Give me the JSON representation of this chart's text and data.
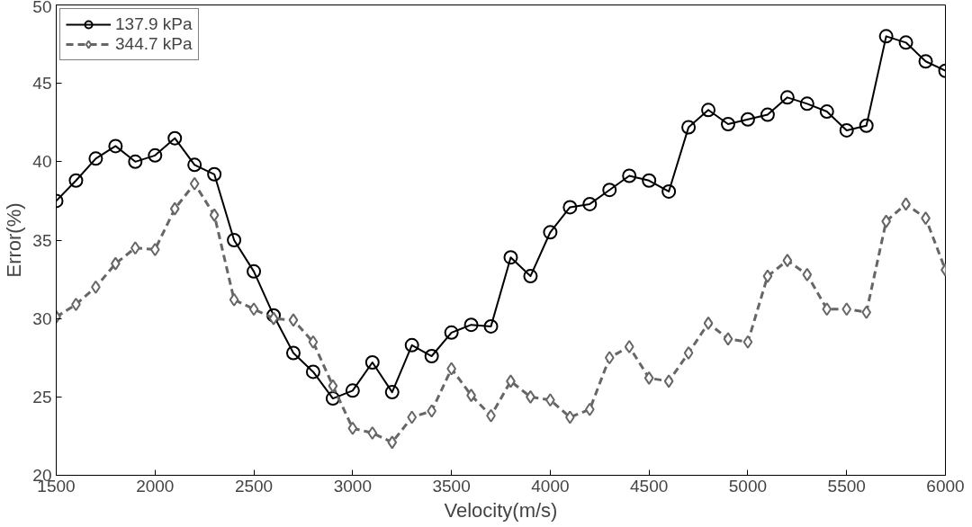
{
  "chart_data": {
    "type": "line",
    "xlabel": "Velocity(m/s)",
    "ylabel": "Error(%)",
    "x": [
      1500,
      1600,
      1700,
      1800,
      1900,
      2000,
      2100,
      2200,
      2300,
      2400,
      2500,
      2600,
      2700,
      2800,
      2900,
      3000,
      3100,
      3200,
      3300,
      3400,
      3500,
      3600,
      3700,
      3800,
      3900,
      4000,
      4100,
      4200,
      4300,
      4400,
      4500,
      4600,
      4700,
      4800,
      4900,
      5000,
      5100,
      5200,
      5300,
      5400,
      5500,
      5600,
      5700,
      5800,
      5900,
      6000
    ],
    "series": [
      {
        "name": "137.9 kPa",
        "color": "#000000",
        "marker": "circle",
        "line_style": "solid",
        "values": [
          37.5,
          38.8,
          40.2,
          41.0,
          40.0,
          40.4,
          41.5,
          39.8,
          39.2,
          35.0,
          33.0,
          30.2,
          27.8,
          26.6,
          24.9,
          25.4,
          27.2,
          25.3,
          28.3,
          27.6,
          29.1,
          29.6,
          29.5,
          33.9,
          32.7,
          35.5,
          37.1,
          37.3,
          38.2,
          39.1,
          38.8,
          38.1,
          42.2,
          43.3,
          42.4,
          42.7,
          43.0,
          44.1,
          43.7,
          43.2,
          42.0,
          42.3,
          48.0,
          47.6,
          46.4,
          45.8
        ]
      },
      {
        "name": "344.7 kPa",
        "color": "#666666",
        "marker": "diamond",
        "line_style": "dashed",
        "values": [
          30.1,
          30.9,
          32.0,
          33.5,
          34.5,
          34.4,
          37.0,
          38.6,
          36.6,
          31.2,
          30.6,
          30.0,
          29.9,
          28.5,
          25.7,
          23.0,
          22.7,
          22.1,
          23.7,
          24.1,
          26.8,
          25.1,
          23.8,
          26.0,
          25.0,
          24.8,
          23.7,
          24.2,
          27.5,
          28.2,
          26.2,
          26.0,
          27.8,
          29.7,
          28.7,
          28.5,
          32.7,
          33.7,
          32.8,
          30.6,
          30.6,
          30.4,
          36.2,
          37.3,
          36.4,
          33.1
        ]
      }
    ],
    "xlim": [
      1500,
      6000
    ],
    "xticks": [
      1500,
      2000,
      2500,
      3000,
      3500,
      4000,
      4500,
      5000,
      5500,
      6000
    ],
    "ylim": [
      20,
      50
    ],
    "yticks": [
      20,
      25,
      30,
      35,
      40,
      45,
      50
    ],
    "grid": false,
    "legend": "top left"
  }
}
